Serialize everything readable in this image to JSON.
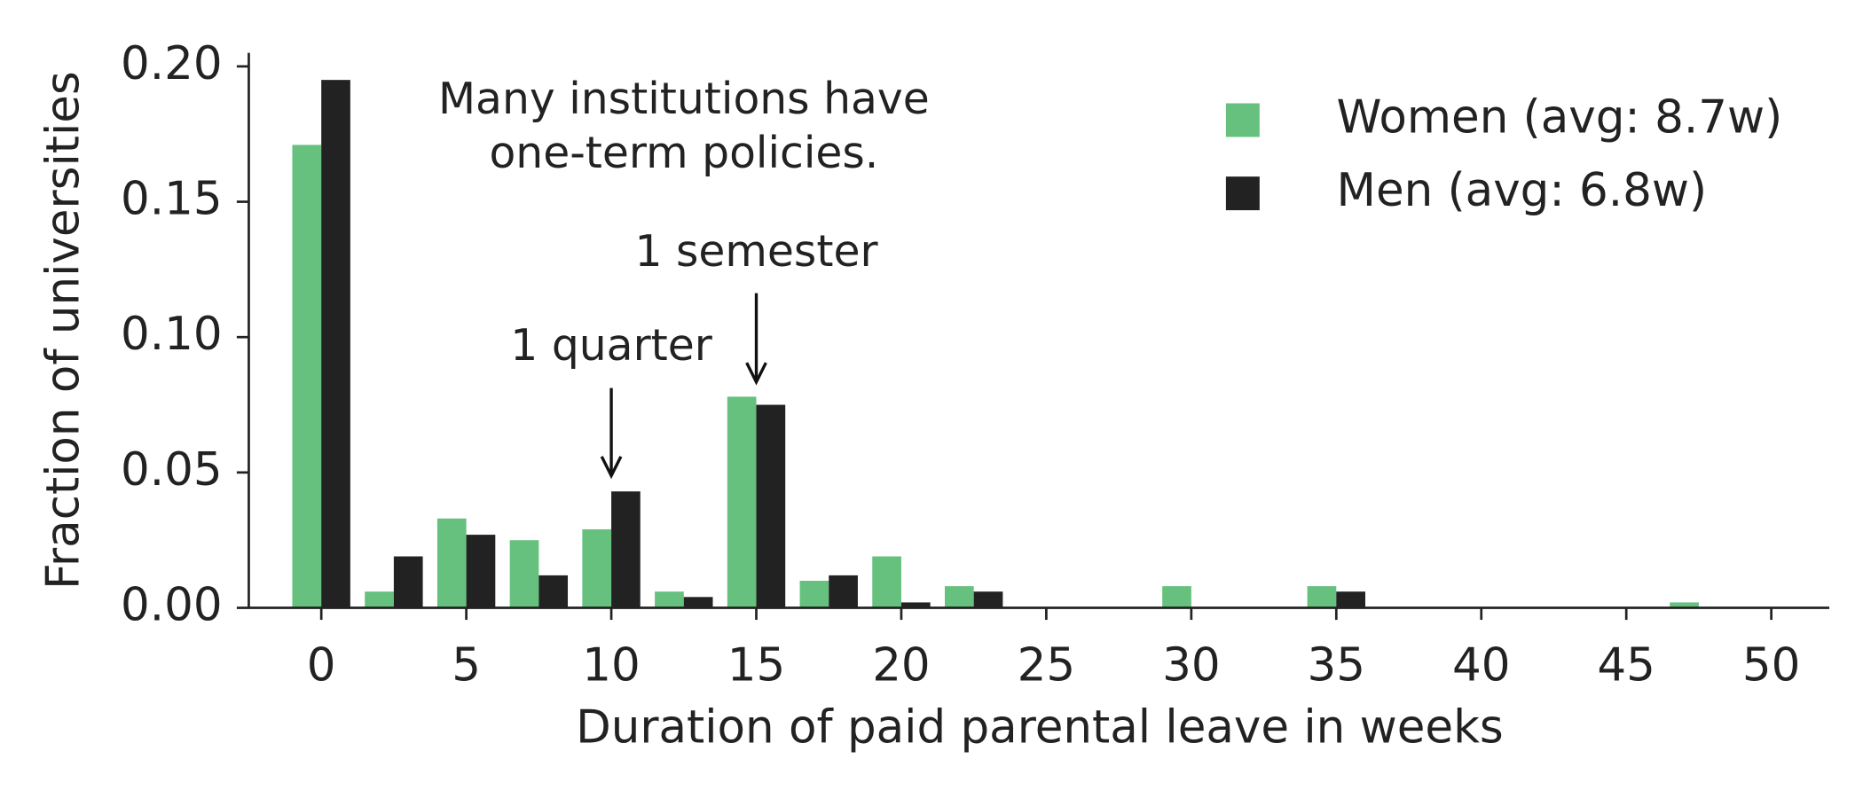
{
  "chart_data": {
    "type": "bar",
    "xlabel": "Duration of paid parental leave in weeks",
    "ylabel": "Fraction of universities",
    "x": [
      0,
      2.5,
      5,
      7.5,
      10,
      12.5,
      15,
      17.5,
      20,
      22.5,
      25,
      27.5,
      30,
      32.5,
      35,
      37.5,
      40,
      42.5,
      45,
      47.5
    ],
    "series": [
      {
        "name": "Women (avg: 8.7w)",
        "color": "#66c17e",
        "values": [
          0.171,
          0.006,
          0.033,
          0.025,
          0.029,
          0.006,
          0.078,
          0.01,
          0.019,
          0.008,
          0,
          0,
          0.008,
          0,
          0.008,
          0,
          0,
          0,
          0,
          0.002
        ]
      },
      {
        "name": "Men (avg: 6.8w)",
        "color": "#222222",
        "values": [
          0.195,
          0.019,
          0.027,
          0.012,
          0.043,
          0.004,
          0.075,
          0.012,
          0.002,
          0.006,
          0,
          0,
          0,
          0,
          0.006,
          0,
          0,
          0,
          0,
          0
        ]
      }
    ],
    "xlim": [
      -2.5,
      52
    ],
    "ylim": [
      0,
      0.205
    ],
    "xticks": [
      0,
      5,
      10,
      15,
      20,
      25,
      30,
      35,
      40,
      45,
      50
    ],
    "yticks": [
      {
        "value": 0,
        "label": "0.00"
      },
      {
        "value": 0.05,
        "label": "0.05"
      },
      {
        "value": 0.1,
        "label": "0.10"
      },
      {
        "value": 0.15,
        "label": "0.15"
      },
      {
        "value": 0.2,
        "label": "0.20"
      }
    ],
    "legend": "upper right",
    "annotations": [
      {
        "lines": [
          "Many institutions have",
          "one-term policies."
        ]
      },
      {
        "text": "1 quarter"
      },
      {
        "text": "1 semester"
      }
    ]
  }
}
